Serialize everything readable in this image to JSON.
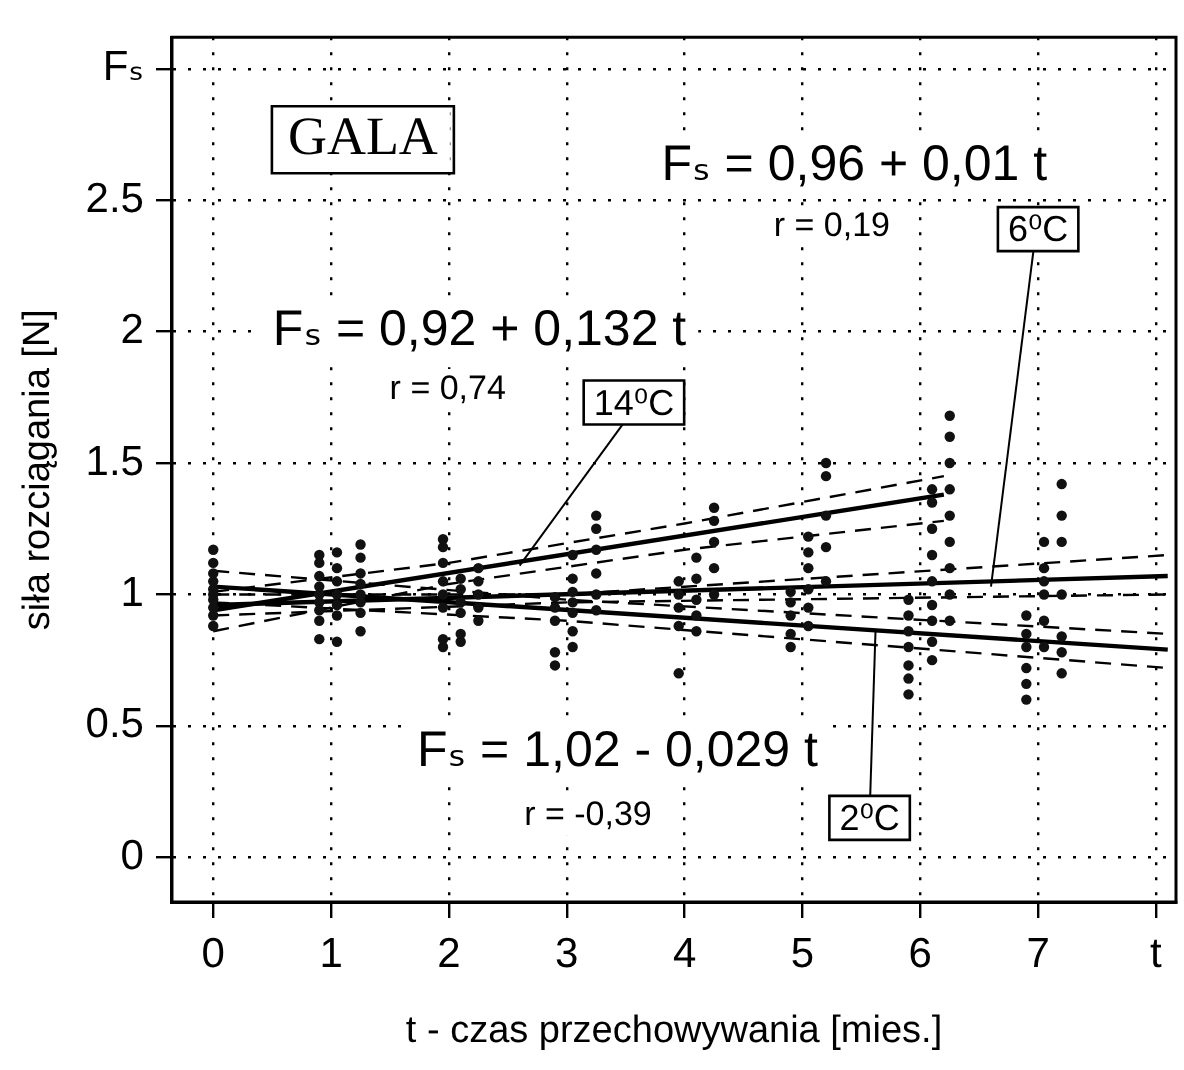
{
  "chart_data": {
    "type": "scatter",
    "xlabel": "t - czas przechowywania [mies.]",
    "ylabel": "siła rozciągania [N]",
    "xlim": [
      -0.35,
      8.17
    ],
    "ylim": [
      -0.17,
      3.12
    ],
    "xticks": [
      0,
      1,
      2,
      3,
      4,
      5,
      6,
      7,
      {
        "value": 8,
        "label": "t"
      }
    ],
    "yticks": [
      0,
      0.5,
      1.0,
      1.5,
      2.0,
      2.5,
      {
        "value": 3,
        "label": "Fₛ"
      }
    ],
    "grid": true,
    "legend": false,
    "marker": "circle",
    "annotations": [
      "GALA",
      "Fₛ = 0,96 + 0,01 t",
      "r = 0,19",
      "Fₛ = 0,92 + 0,132 t",
      "r = 0,74",
      "Fₛ = 1,02 - 0,029 t",
      "r = -0,39",
      {
        "text": "14⁰C",
        "x": 2.6,
        "y": 1.11
      },
      {
        "text": "6⁰C",
        "x": 6.6,
        "y": 1.03
      },
      {
        "text": "2⁰C",
        "x": 5.62,
        "y": 0.86
      }
    ],
    "series": [
      {
        "color": "#111111",
        "x": [
          0,
          0,
          0,
          0,
          0,
          0,
          0,
          0,
          0,
          0,
          0.9,
          0.9,
          0.9,
          0.9,
          0.9,
          0.9,
          0.9,
          0.9,
          0.9,
          1.05,
          1.05,
          1.05,
          1.05,
          1.05,
          1.05,
          1.05,
          1.25,
          1.25,
          1.25,
          1.25,
          1.25,
          1.25,
          1.25,
          1.25,
          1.95,
          1.95,
          1.95,
          1.95,
          1.95,
          1.95,
          1.95,
          1.95,
          2.1,
          2.1,
          2.1,
          2.1,
          2.1,
          2.1,
          2.25,
          2.25,
          2.25,
          2.25,
          2.25,
          2.9,
          2.9,
          2.9,
          2.9,
          2.9,
          3.05,
          3.05,
          3.05,
          3.05,
          3.05,
          3.05,
          3.05,
          3.25,
          3.25,
          3.25,
          3.25,
          3.25,
          3.25,
          3.95,
          3.95,
          3.95,
          3.95,
          3.95,
          4.1,
          4.1,
          4.1,
          4.1,
          4.1,
          4.25,
          4.25,
          4.25,
          4.25,
          4.25,
          4.9,
          4.9,
          4.9,
          4.9,
          4.9,
          5.05,
          5.05,
          5.05,
          5.05,
          5.05,
          5.05,
          5.2,
          5.2,
          5.2,
          5.2,
          5.2,
          5.9,
          5.9,
          5.9,
          5.9,
          5.9,
          5.9,
          5.9,
          6.1,
          6.1,
          6.1,
          6.1,
          6.1,
          6.1,
          6.1,
          6.1,
          6.1,
          6.25,
          6.25,
          6.25,
          6.25,
          6.25,
          6.25,
          6.25,
          6.25,
          6.25,
          6.9,
          6.9,
          6.9,
          6.9,
          6.9,
          6.9,
          7.05,
          7.05,
          7.05,
          7.05,
          7.05,
          7.05,
          7.2,
          7.2,
          7.2,
          7.2,
          7.2,
          7.2,
          7.2
        ],
        "values": [
          0.88,
          0.92,
          0.95,
          0.98,
          1.0,
          1.02,
          1.05,
          1.08,
          1.12,
          1.17,
          0.83,
          0.9,
          0.94,
          0.97,
          1.0,
          1.03,
          1.07,
          1.12,
          1.15,
          0.82,
          0.92,
          0.96,
          1.0,
          1.05,
          1.1,
          1.16,
          0.86,
          0.93,
          0.97,
          1.0,
          1.04,
          1.08,
          1.14,
          1.19,
          0.8,
          0.83,
          0.95,
          1.0,
          1.05,
          1.12,
          1.18,
          1.21,
          0.82,
          0.85,
          0.93,
          0.97,
          1.02,
          1.06,
          0.9,
          0.95,
          1.0,
          1.05,
          1.1,
          0.73,
          0.78,
          0.9,
          0.95,
          0.99,
          0.8,
          0.86,
          0.93,
          0.97,
          1.01,
          1.06,
          1.15,
          0.94,
          1.0,
          1.08,
          1.17,
          1.25,
          1.3,
          0.7,
          0.88,
          0.95,
          1.0,
          1.05,
          0.86,
          0.92,
          0.98,
          1.06,
          1.14,
          1.0,
          1.1,
          1.2,
          1.28,
          1.33,
          0.8,
          0.85,
          0.92,
          0.97,
          1.01,
          0.88,
          0.95,
          1.02,
          1.1,
          1.16,
          1.22,
          1.05,
          1.18,
          1.3,
          1.45,
          1.5,
          0.62,
          0.68,
          0.73,
          0.8,
          0.86,
          0.92,
          0.98,
          0.75,
          0.82,
          0.9,
          0.96,
          1.05,
          1.15,
          1.25,
          1.35,
          1.4,
          0.9,
          1.0,
          1.1,
          1.2,
          1.3,
          1.4,
          1.5,
          1.6,
          1.68,
          0.6,
          0.66,
          0.72,
          0.8,
          0.85,
          0.92,
          0.8,
          0.9,
          1.0,
          1.05,
          1.1,
          1.2,
          0.7,
          0.78,
          0.84,
          1.0,
          1.2,
          1.3,
          1.42
        ]
      },
      {
        "type": "line",
        "marker": "none",
        "line_style": "solid",
        "color": "#000000",
        "x": [
          0,
          6.2
        ],
        "values": [
          0.94,
          1.38
        ]
      },
      {
        "type": "line",
        "marker": "none",
        "line_style": "dashed",
        "color": "#000000",
        "x": [
          0,
          2,
          4,
          6.2
        ],
        "values": [
          0.86,
          1.04,
          1.17,
          1.28
        ]
      },
      {
        "type": "line",
        "marker": "none",
        "line_style": "dashed",
        "color": "#000000",
        "x": [
          0,
          2,
          4,
          6.2
        ],
        "values": [
          1.01,
          1.12,
          1.27,
          1.45
        ]
      },
      {
        "type": "line",
        "marker": "none",
        "line_style": "solid",
        "color": "#000000",
        "x": [
          0,
          8.1
        ],
        "values": [
          0.96,
          1.07
        ]
      },
      {
        "type": "line",
        "marker": "none",
        "line_style": "dashed",
        "color": "#000000",
        "x": [
          0,
          3,
          8.1
        ],
        "values": [
          0.92,
          0.97,
          1.0
        ]
      },
      {
        "type": "line",
        "marker": "none",
        "line_style": "dashed",
        "color": "#000000",
        "x": [
          0,
          3,
          8.1
        ],
        "values": [
          1.0,
          1.0,
          1.15
        ]
      },
      {
        "type": "line",
        "marker": "none",
        "line_style": "solid",
        "color": "#000000",
        "x": [
          0,
          8.1
        ],
        "values": [
          1.03,
          0.79
        ]
      },
      {
        "type": "line",
        "marker": "none",
        "line_style": "dashed",
        "color": "#000000",
        "x": [
          0,
          3,
          8.1
        ],
        "values": [
          0.97,
          0.9,
          0.72
        ]
      },
      {
        "type": "line",
        "marker": "none",
        "line_style": "dashed",
        "color": "#000000",
        "x": [
          0,
          3,
          8.1
        ],
        "values": [
          1.09,
          0.98,
          0.85
        ]
      }
    ]
  }
}
